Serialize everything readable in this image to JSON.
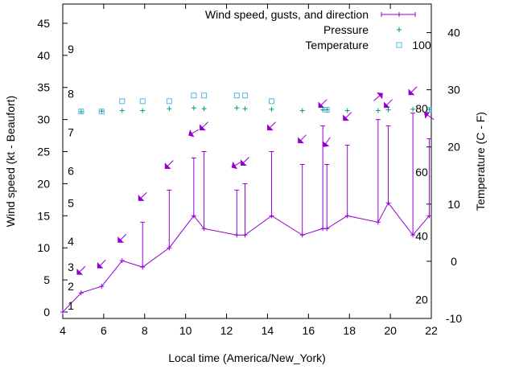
{
  "chart_data": {
    "type": "line",
    "xlabel": "Local time (America/New_York)",
    "ylabel": "Wind speed (kt - Beaufort)",
    "y2label": "Temperature (C - F)",
    "xlim": [
      4,
      22
    ],
    "ylim": [
      -1,
      48
    ],
    "y2lim": [
      -10,
      45
    ],
    "x_ticks": [
      4,
      6,
      8,
      10,
      12,
      14,
      16,
      18,
      20,
      22
    ],
    "y_ticks": [
      0,
      5,
      10,
      15,
      20,
      25,
      30,
      35,
      40,
      45
    ],
    "y2_ticks": [
      -10,
      0,
      10,
      20,
      30,
      40
    ],
    "beaufort_labels": [
      {
        "label": "1",
        "y": 1
      },
      {
        "label": "2",
        "y": 4
      },
      {
        "label": "3",
        "y": 7
      },
      {
        "label": "4",
        "y": 11
      },
      {
        "label": "5",
        "y": 17
      },
      {
        "label": "6",
        "y": 22
      },
      {
        "label": "7",
        "y": 28
      },
      {
        "label": "8",
        "y": 34
      },
      {
        "label": "9",
        "y": 41
      }
    ],
    "fahrenheit_labels": [
      {
        "label": "20",
        "c": -6.7
      },
      {
        "label": "40",
        "c": 4.4
      },
      {
        "label": "60",
        "c": 15.6
      },
      {
        "label": "80",
        "c": 26.7
      },
      {
        "label": "100",
        "c": 37.8
      }
    ],
    "legend": [
      {
        "name": "Wind speed, gusts, and direction",
        "color": "#9400d3",
        "marker": "line-plus"
      },
      {
        "name": "Pressure",
        "color": "#009e73",
        "marker": "plus"
      },
      {
        "name": "Temperature",
        "color": "#56b4e9",
        "marker": "square"
      }
    ],
    "legend_position": "top-right",
    "wind": {
      "color": "#9400d3",
      "x": [
        4.0,
        4.9,
        5.9,
        6.9,
        7.9,
        9.2,
        10.4,
        10.9,
        12.5,
        12.9,
        14.2,
        15.7,
        16.7,
        16.9,
        17.9,
        19.4,
        19.9,
        21.1,
        21.9
      ],
      "speed": [
        0,
        3,
        4,
        8,
        7,
        10,
        15,
        13,
        12,
        12,
        15,
        12,
        13,
        13,
        15,
        14,
        17,
        12,
        15
      ],
      "gust": [
        null,
        null,
        null,
        null,
        14,
        19,
        24,
        25,
        19,
        20,
        25,
        23,
        29,
        23,
        26,
        30,
        29,
        31,
        27
      ],
      "arrow_y": [
        null,
        6.5,
        7.5,
        11.5,
        18,
        23,
        28,
        29,
        23,
        23.5,
        29,
        27,
        32.5,
        26.5,
        30.5,
        33.5,
        32.5,
        34.5,
        30.5
      ],
      "arrow_rot": [
        null,
        0,
        0,
        0,
        0,
        0,
        15,
        0,
        15,
        0,
        0,
        0,
        0,
        -10,
        0,
        185,
        0,
        0,
        80
      ]
    },
    "pressure": {
      "color": "#009e73",
      "x": [
        4.9,
        5.9,
        6.9,
        7.9,
        9.2,
        10.4,
        10.9,
        12.5,
        12.9,
        14.2,
        15.7,
        16.7,
        16.9,
        17.9,
        19.4,
        19.9,
        21.1,
        21.9
      ],
      "y": [
        31.2,
        31.3,
        31.4,
        31.4,
        31.7,
        31.8,
        31.7,
        31.8,
        31.7,
        31.6,
        31.4,
        31.5,
        31.5,
        31.4,
        31.4,
        31.5,
        31.6,
        31.6
      ]
    },
    "temperature": {
      "color": "#56b4e9",
      "x": [
        4.9,
        5.9,
        6.9,
        7.9,
        9.2,
        10.4,
        10.9,
        12.5,
        12.9,
        14.2,
        16.9,
        21.9
      ],
      "c": [
        26.2,
        26.2,
        28.0,
        28.0,
        28.0,
        29.0,
        29.0,
        29.0,
        29.0,
        28.0,
        26.5,
        26.5
      ]
    }
  }
}
